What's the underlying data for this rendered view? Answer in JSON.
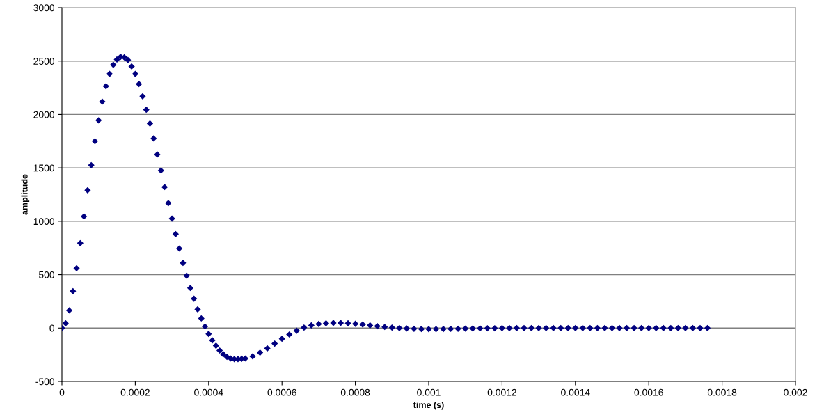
{
  "chart_data": {
    "type": "scatter",
    "xlabel": "time (s)",
    "ylabel": "amplitude",
    "marker": "diamond",
    "grid": "y",
    "xlim": [
      0,
      0.002
    ],
    "xticks": [
      {
        "value": 0,
        "label": "0"
      },
      {
        "value": 0.0002,
        "label": "0.0002"
      },
      {
        "value": 0.0004,
        "label": "0.0004"
      },
      {
        "value": 0.0006,
        "label": "0.0006"
      },
      {
        "value": 0.0008,
        "label": "0.0008"
      },
      {
        "value": 0.001,
        "label": "0.001"
      },
      {
        "value": 0.0012,
        "label": "0.0012"
      },
      {
        "value": 0.0014,
        "label": "0.0014"
      },
      {
        "value": 0.0016,
        "label": "0.0016"
      },
      {
        "value": 0.0018,
        "label": "0.0018"
      },
      {
        "value": 0.002,
        "label": "0.002"
      }
    ],
    "ylim": [
      -500,
      3000
    ],
    "yticks": [
      -500,
      0,
      500,
      1000,
      1500,
      2000,
      2500,
      3000
    ],
    "series": [
      {
        "color": "#000080",
        "x": [
          0,
          1e-05,
          2e-05,
          3e-05,
          4e-05,
          5e-05,
          6e-05,
          7e-05,
          8e-05,
          9e-05,
          0.0001,
          0.00011,
          0.00012,
          0.00013,
          0.00014,
          0.00015,
          0.00016,
          0.00017,
          0.00018,
          0.00019,
          0.0002,
          0.00021,
          0.00022,
          0.00023,
          0.00024,
          0.00025,
          0.00026,
          0.00027,
          0.00028,
          0.00029,
          0.0003,
          0.00031,
          0.00032,
          0.00033,
          0.00034,
          0.00035,
          0.00036,
          0.00037,
          0.00038,
          0.00039,
          0.0004,
          0.00041,
          0.00042,
          0.00043,
          0.00044,
          0.00045,
          0.00046,
          0.00047,
          0.00048,
          0.00049,
          0.0005,
          0.00052,
          0.00054,
          0.00056,
          0.00058,
          0.0006,
          0.00062,
          0.00064,
          0.00066,
          0.00068,
          0.0007,
          0.00072,
          0.00074,
          0.00076,
          0.00078,
          0.0008,
          0.00082,
          0.00084,
          0.00086,
          0.00088,
          0.0009,
          0.00092,
          0.00094,
          0.00096,
          0.00098,
          0.001,
          0.00102,
          0.00104,
          0.00106,
          0.00108,
          0.0011,
          0.00112,
          0.00114,
          0.00116,
          0.00118,
          0.0012,
          0.00122,
          0.00124,
          0.00126,
          0.00128,
          0.0013,
          0.00132,
          0.00134,
          0.00136,
          0.00138,
          0.0014,
          0.00142,
          0.00144,
          0.00146,
          0.00148,
          0.0015,
          0.00152,
          0.00154,
          0.00156,
          0.00158,
          0.0016,
          0.00162,
          0.00164,
          0.00166,
          0.00168,
          0.0017,
          0.00172,
          0.00174,
          0.00176
        ],
        "values": [
          0,
          45,
          165,
          345,
          560,
          795,
          1045,
          1290,
          1525,
          1750,
          1945,
          2120,
          2265,
          2380,
          2465,
          2515,
          2540,
          2535,
          2510,
          2450,
          2380,
          2285,
          2170,
          2045,
          1915,
          1775,
          1625,
          1475,
          1320,
          1170,
          1025,
          880,
          745,
          610,
          490,
          375,
          275,
          175,
          90,
          15,
          -55,
          -115,
          -165,
          -210,
          -245,
          -270,
          -285,
          -290,
          -290,
          -288,
          -285,
          -265,
          -230,
          -190,
          -145,
          -100,
          -60,
          -25,
          5,
          25,
          38,
          45,
          48,
          48,
          45,
          40,
          33,
          25,
          18,
          10,
          5,
          0,
          -4,
          -7,
          -9,
          -10,
          -10,
          -9,
          -8,
          -7,
          -5,
          -4,
          -3,
          -2,
          -2,
          -1,
          -1,
          0,
          0,
          0,
          0,
          0,
          0,
          0,
          0,
          0,
          0,
          0,
          0,
          0,
          0,
          0,
          0,
          0,
          0,
          0,
          0,
          0,
          0,
          0,
          0,
          0,
          0,
          0
        ]
      }
    ]
  }
}
